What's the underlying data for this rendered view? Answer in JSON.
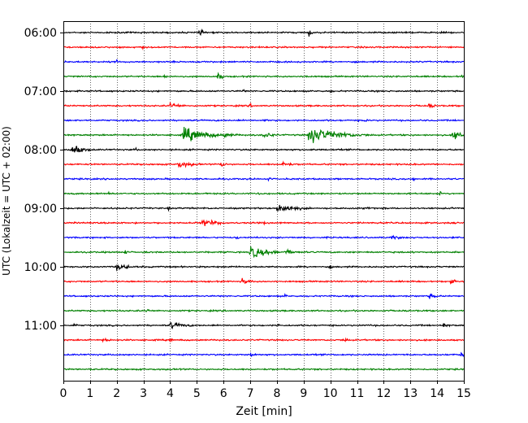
{
  "chart_data": {
    "type": "line",
    "title": "",
    "xlabel": "Zeit  [min]",
    "ylabel": "UTC (Lokalzeit = UTC + 02:00)",
    "xlim": [
      0,
      15
    ],
    "x_ticks": [
      "0",
      "1",
      "2",
      "3",
      "4",
      "5",
      "6",
      "7",
      "8",
      "9",
      "10",
      "11",
      "12",
      "13",
      "14",
      "15"
    ],
    "y_ticks": [
      "06:00",
      "07:00",
      "08:00",
      "09:00",
      "10:00",
      "11:00"
    ],
    "grid": "vertical-dotted",
    "legend": "none",
    "trace_colors": [
      "#000000",
      "#ff0000",
      "#0000ff",
      "#008000"
    ],
    "trace_interval_min": 15,
    "traces": [
      {
        "start": "06:00",
        "color": "#000000",
        "events": [
          {
            "t": 5.1,
            "amp": 0.8,
            "dur": 0.1
          },
          {
            "t": 9.2,
            "amp": 0.8,
            "dur": 0.1
          }
        ]
      },
      {
        "start": "06:15",
        "color": "#ff0000",
        "events": [
          {
            "t": 2.9,
            "amp": 0.5,
            "dur": 0.1
          }
        ]
      },
      {
        "start": "06:30",
        "color": "#0000ff",
        "events": [
          {
            "t": 2.0,
            "amp": 0.5,
            "dur": 0.1
          }
        ]
      },
      {
        "start": "06:45",
        "color": "#008000",
        "events": [
          {
            "t": 3.8,
            "amp": 0.5,
            "dur": 0.1
          },
          {
            "t": 5.8,
            "amp": 0.6,
            "dur": 0.2
          },
          {
            "t": 9.1,
            "amp": 0.5,
            "dur": 0.1
          },
          {
            "t": 14.9,
            "amp": 0.5,
            "dur": 0.1
          }
        ]
      },
      {
        "start": "07:00",
        "color": "#000000",
        "events": [
          {
            "t": 6.7,
            "amp": 0.5,
            "dur": 0.1
          },
          {
            "t": 10.0,
            "amp": 0.4,
            "dur": 0.1
          }
        ]
      },
      {
        "start": "07:15",
        "color": "#ff0000",
        "events": [
          {
            "t": 4.0,
            "amp": 0.6,
            "dur": 0.4
          },
          {
            "t": 7.0,
            "amp": 0.4,
            "dur": 0.1
          },
          {
            "t": 13.7,
            "amp": 0.5,
            "dur": 0.2
          }
        ]
      },
      {
        "start": "07:30",
        "color": "#0000ff",
        "events": [
          {
            "t": 7.5,
            "amp": 0.4,
            "dur": 0.1
          },
          {
            "t": 11.3,
            "amp": 0.4,
            "dur": 0.1
          }
        ]
      },
      {
        "start": "07:45",
        "color": "#008000",
        "events": [
          {
            "t": 4.5,
            "amp": 1.4,
            "dur": 0.8
          },
          {
            "t": 6.0,
            "amp": 0.5,
            "dur": 0.5
          },
          {
            "t": 7.5,
            "amp": 0.6,
            "dur": 0.4
          },
          {
            "t": 9.2,
            "amp": 1.6,
            "dur": 1.0
          },
          {
            "t": 10.5,
            "amp": 0.6,
            "dur": 0.3
          },
          {
            "t": 14.6,
            "amp": 1.2,
            "dur": 0.3
          }
        ]
      },
      {
        "start": "08:00",
        "color": "#000000",
        "events": [
          {
            "t": 0.3,
            "amp": 1.1,
            "dur": 0.4
          },
          {
            "t": 2.7,
            "amp": 0.4,
            "dur": 0.1
          },
          {
            "t": 9.3,
            "amp": 0.4,
            "dur": 0.1
          }
        ]
      },
      {
        "start": "08:15",
        "color": "#ff0000",
        "events": [
          {
            "t": 4.3,
            "amp": 0.6,
            "dur": 0.6
          },
          {
            "t": 5.9,
            "amp": 0.6,
            "dur": 0.2
          },
          {
            "t": 8.2,
            "amp": 0.6,
            "dur": 0.3
          }
        ]
      },
      {
        "start": "08:30",
        "color": "#0000ff",
        "events": [
          {
            "t": 7.7,
            "amp": 0.4,
            "dur": 0.1
          },
          {
            "t": 13.1,
            "amp": 0.4,
            "dur": 0.1
          }
        ]
      },
      {
        "start": "08:45",
        "color": "#008000",
        "events": [
          {
            "t": 1.7,
            "amp": 0.4,
            "dur": 0.1
          },
          {
            "t": 7.3,
            "amp": 0.4,
            "dur": 0.1
          },
          {
            "t": 14.1,
            "amp": 0.4,
            "dur": 0.1
          }
        ]
      },
      {
        "start": "09:00",
        "color": "#000000",
        "events": [
          {
            "t": 3.9,
            "amp": 0.4,
            "dur": 0.1
          },
          {
            "t": 8.0,
            "amp": 1.0,
            "dur": 0.6
          },
          {
            "t": 11.4,
            "amp": 0.4,
            "dur": 0.1
          }
        ]
      },
      {
        "start": "09:15",
        "color": "#ff0000",
        "events": [
          {
            "t": 5.2,
            "amp": 0.7,
            "dur": 0.6
          },
          {
            "t": 7.5,
            "amp": 0.4,
            "dur": 0.1
          }
        ]
      },
      {
        "start": "09:30",
        "color": "#0000ff",
        "events": [
          {
            "t": 6.5,
            "amp": 0.4,
            "dur": 0.1
          },
          {
            "t": 12.3,
            "amp": 0.4,
            "dur": 0.4
          }
        ]
      },
      {
        "start": "09:45",
        "color": "#008000",
        "events": [
          {
            "t": 2.3,
            "amp": 0.4,
            "dur": 0.2
          },
          {
            "t": 7.0,
            "amp": 1.2,
            "dur": 0.6
          },
          {
            "t": 8.3,
            "amp": 0.5,
            "dur": 0.5
          }
        ]
      },
      {
        "start": "10:00",
        "color": "#000000",
        "events": [
          {
            "t": 2.0,
            "amp": 0.6,
            "dur": 0.5
          },
          {
            "t": 6.2,
            "amp": 0.4,
            "dur": 0.1
          },
          {
            "t": 10.0,
            "amp": 0.4,
            "dur": 0.1
          }
        ]
      },
      {
        "start": "10:15",
        "color": "#ff0000",
        "events": [
          {
            "t": 6.7,
            "amp": 0.6,
            "dur": 0.3
          },
          {
            "t": 14.5,
            "amp": 0.5,
            "dur": 0.2
          }
        ]
      },
      {
        "start": "10:30",
        "color": "#0000ff",
        "events": [
          {
            "t": 8.3,
            "amp": 0.4,
            "dur": 0.1
          },
          {
            "t": 13.7,
            "amp": 0.5,
            "dur": 0.3
          }
        ]
      },
      {
        "start": "10:45",
        "color": "#008000",
        "events": [
          {
            "t": 3.1,
            "amp": 0.6,
            "dur": 0.1
          }
        ]
      },
      {
        "start": "11:00",
        "color": "#000000",
        "events": [
          {
            "t": 0.4,
            "amp": 0.5,
            "dur": 0.1
          },
          {
            "t": 4.0,
            "amp": 0.6,
            "dur": 0.6
          },
          {
            "t": 8.0,
            "amp": 0.4,
            "dur": 0.1
          },
          {
            "t": 14.2,
            "amp": 0.5,
            "dur": 0.2
          }
        ]
      },
      {
        "start": "11:15",
        "color": "#ff0000",
        "events": [
          {
            "t": 1.5,
            "amp": 0.4,
            "dur": 0.3
          },
          {
            "t": 4.0,
            "amp": 0.4,
            "dur": 0.1
          },
          {
            "t": 10.5,
            "amp": 0.5,
            "dur": 0.2
          }
        ]
      },
      {
        "start": "11:30",
        "color": "#0000ff",
        "events": [
          {
            "t": 7.0,
            "amp": 0.4,
            "dur": 0.3
          },
          {
            "t": 14.8,
            "amp": 0.5,
            "dur": 0.3
          }
        ]
      },
      {
        "start": "11:45",
        "color": "#008000",
        "events": [
          {
            "t": 1.0,
            "amp": 0.3,
            "dur": 0.1
          },
          {
            "t": 4.4,
            "amp": 0.3,
            "dur": 0.1
          }
        ]
      }
    ]
  }
}
